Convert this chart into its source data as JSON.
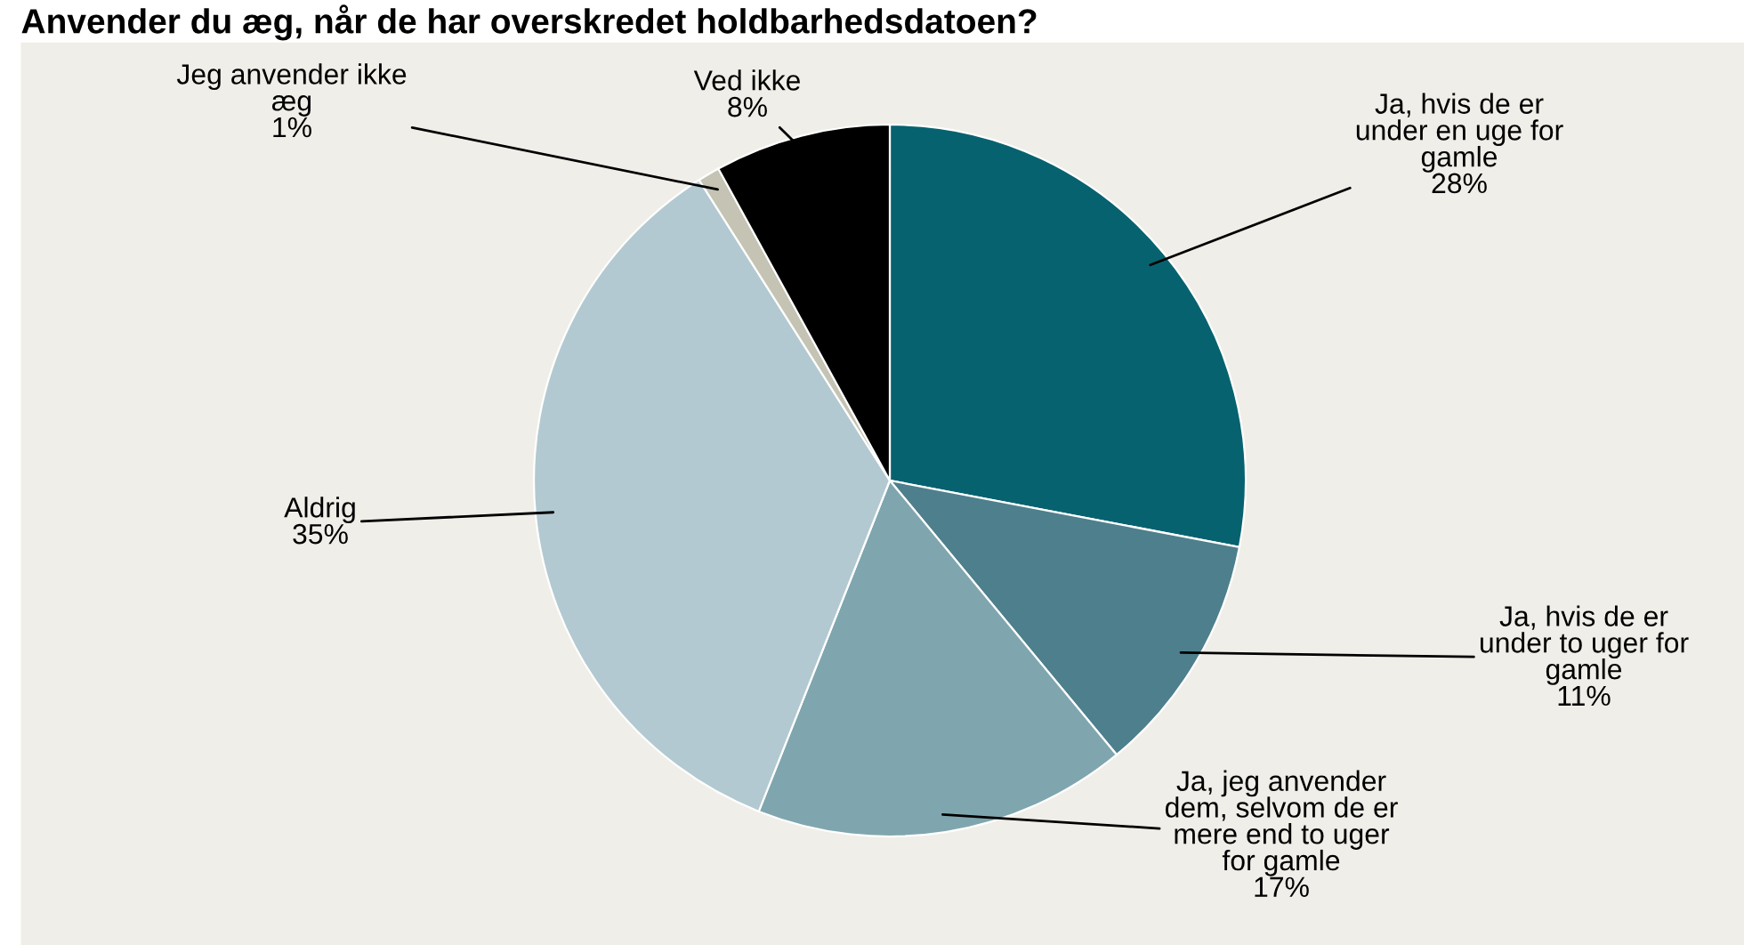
{
  "chart_data": {
    "type": "pie",
    "title": "Anvender du æg, når de har overskredet holdbarhedsdatoen?",
    "categories": [
      "Ja, hvis de er\nunder en uge for\ngamle",
      "Ja, hvis de er\nunder to uger for\ngamle",
      "Ja, jeg anvender\ndem, selvom de er\nmere end to uger\nfor gamle",
      "Aldrig",
      "Jeg anvender ikke\næg",
      "Ved ikke"
    ],
    "values": [
      28,
      11,
      17,
      35,
      1,
      8
    ],
    "colors": [
      "#07626f",
      "#4e7f8c",
      "#7fa6ae",
      "#b3c9d1",
      "#c5c3b3",
      "#000000"
    ],
    "value_labels": [
      "28%",
      "11%",
      "17%",
      "35%",
      "1%",
      "8%"
    ],
    "legend": false
  }
}
